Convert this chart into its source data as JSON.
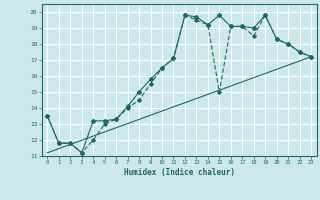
{
  "xlabel": "Humidex (Indice chaleur)",
  "xlim": [
    -0.5,
    23.5
  ],
  "ylim": [
    11,
    20.5
  ],
  "xticks": [
    0,
    1,
    2,
    3,
    4,
    5,
    6,
    7,
    8,
    9,
    10,
    11,
    12,
    13,
    14,
    15,
    16,
    17,
    18,
    19,
    20,
    21,
    22,
    23
  ],
  "yticks": [
    11,
    12,
    13,
    14,
    15,
    16,
    17,
    18,
    19,
    20
  ],
  "bg_color": "#cce8e8",
  "line_color": "#1a6b5a",
  "grid_color": "#ffffff",
  "line1_x": [
    0,
    1,
    2,
    3,
    4,
    5,
    6,
    7,
    8,
    9,
    10,
    11,
    12,
    13,
    14,
    15,
    16,
    17,
    18,
    19,
    20,
    21,
    22,
    23
  ],
  "line1_y": [
    13.5,
    11.8,
    11.8,
    11.2,
    13.2,
    13.2,
    13.3,
    14.1,
    15.0,
    15.8,
    16.5,
    17.1,
    19.8,
    19.7,
    19.2,
    19.8,
    19.1,
    19.1,
    19.0,
    19.8,
    18.3,
    18.0,
    17.5,
    17.2
  ],
  "line2_x": [
    0,
    1,
    2,
    3,
    4,
    5,
    6,
    7,
    8,
    9,
    10,
    11,
    12,
    13,
    14,
    15,
    16,
    17,
    18,
    19,
    20,
    21,
    22,
    23
  ],
  "line2_y": [
    13.5,
    11.8,
    11.8,
    11.2,
    12.0,
    13.0,
    13.3,
    14.0,
    14.5,
    15.5,
    16.5,
    17.1,
    19.8,
    19.5,
    19.2,
    15.0,
    19.1,
    19.1,
    18.5,
    19.8,
    18.3,
    18.0,
    17.5,
    17.2
  ],
  "line3_x": [
    0,
    23
  ],
  "line3_y": [
    11.2,
    17.2
  ]
}
